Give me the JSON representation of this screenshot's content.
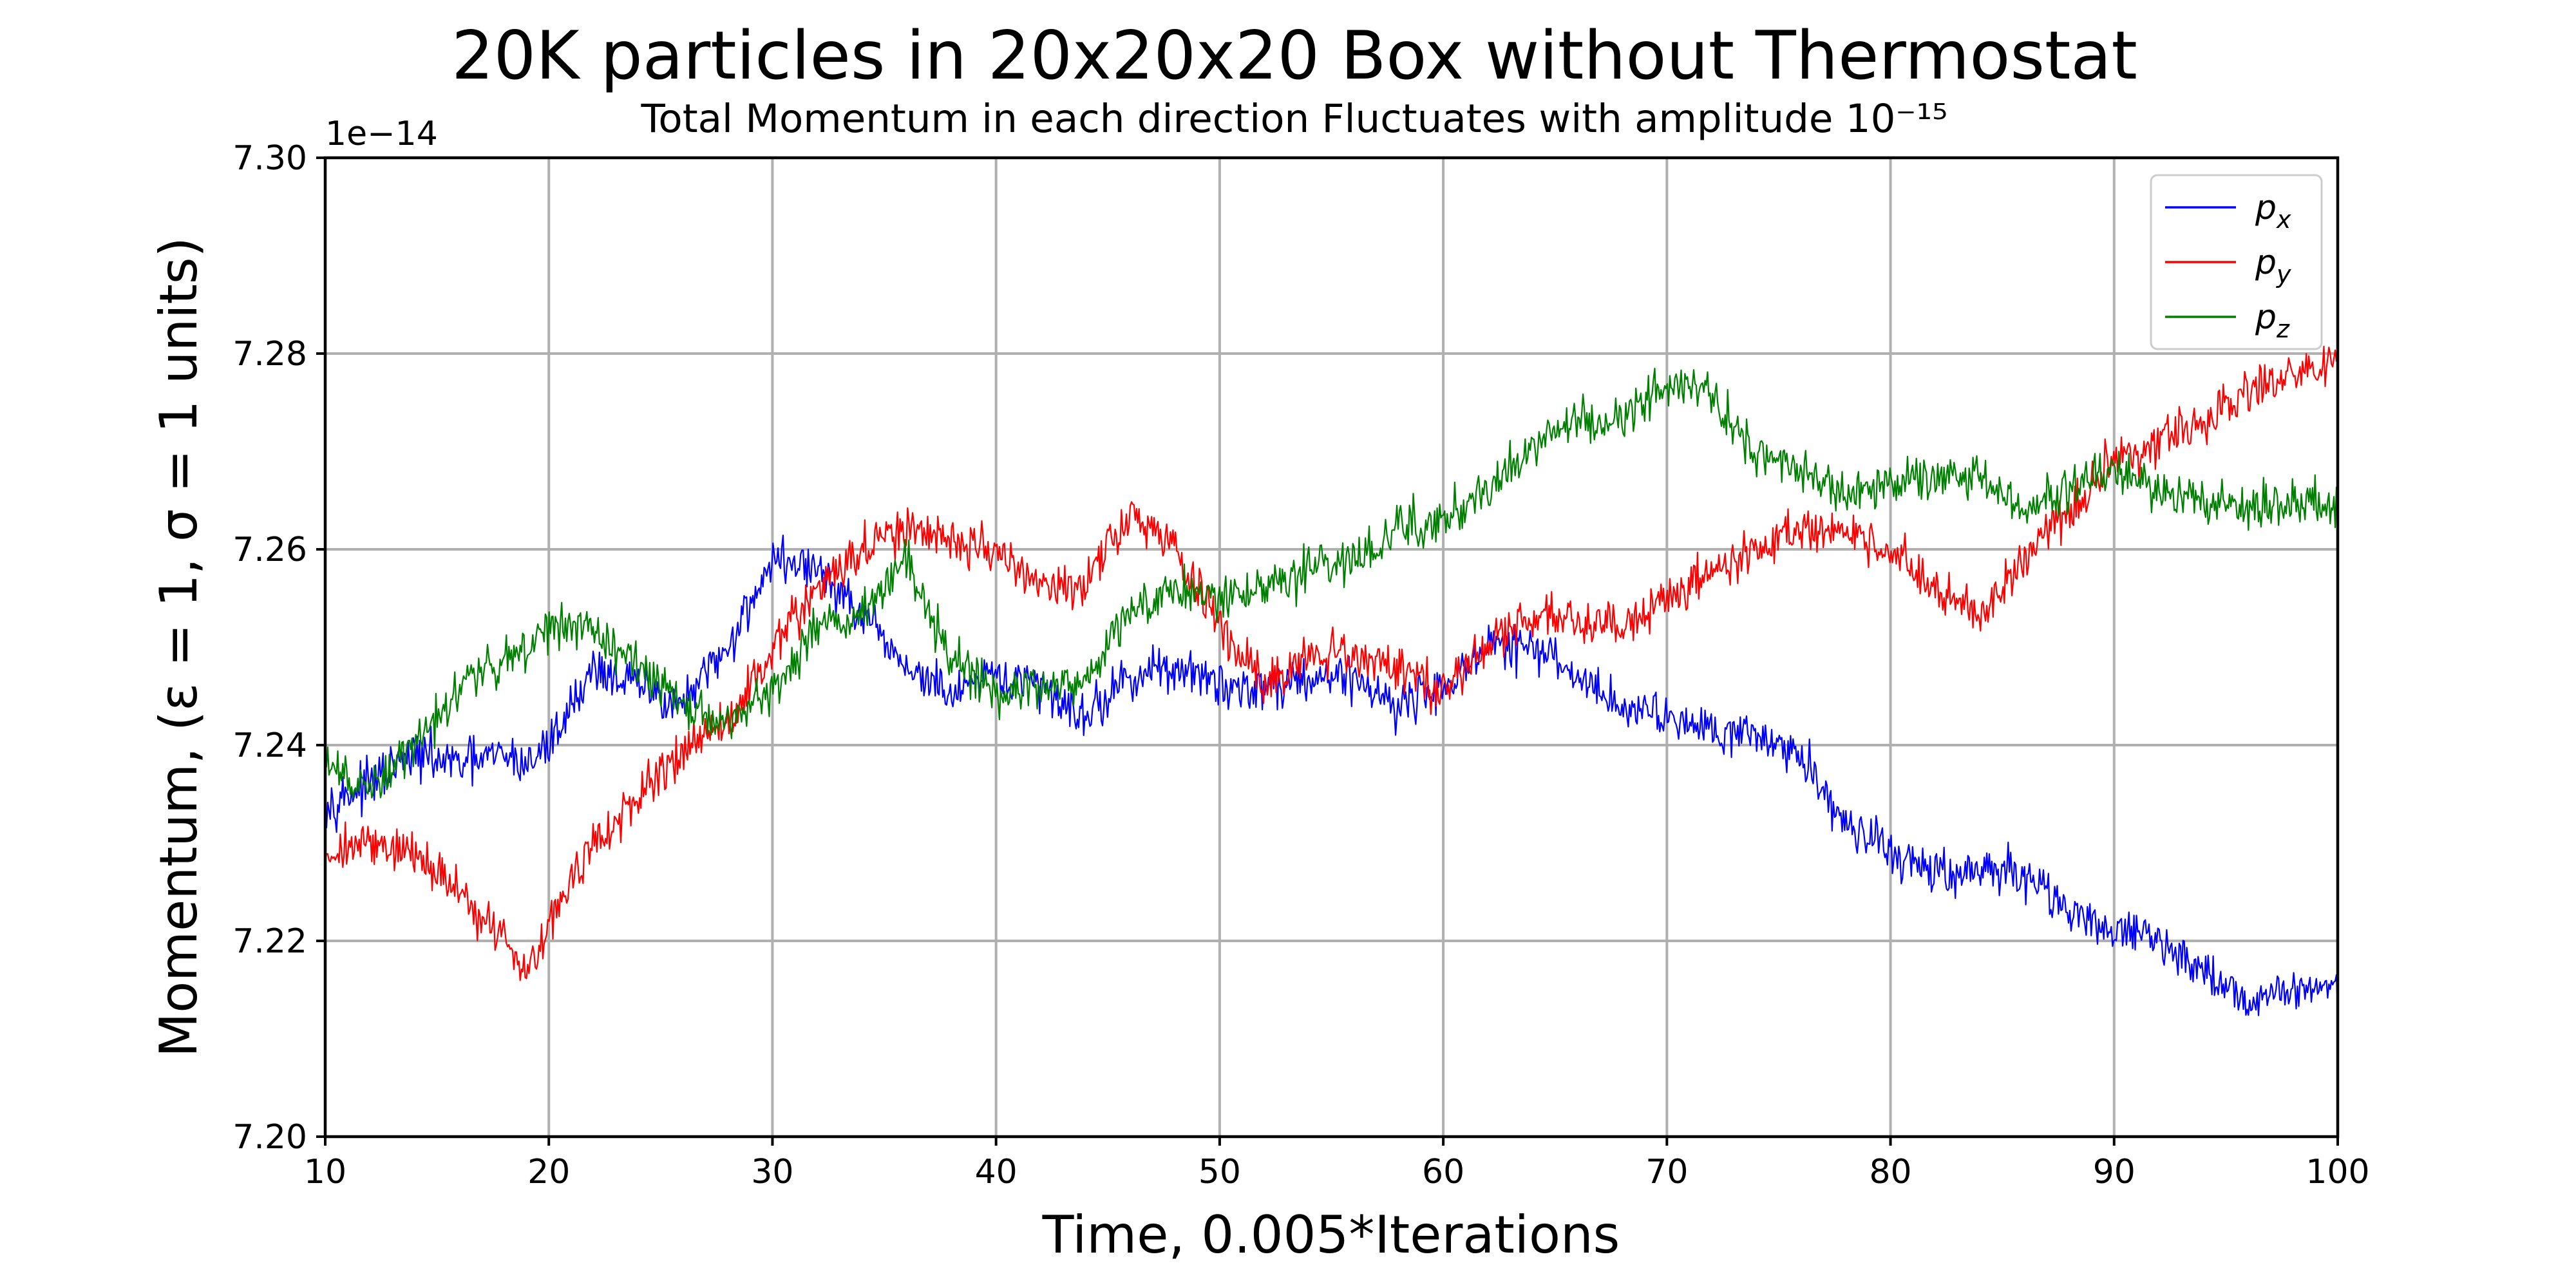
{
  "chart_data": {
    "type": "line",
    "title": "20K particles in 20x20x20 Box without Thermostat",
    "subtitle": "Total Momentum in each direction Fluctuates with amplitude 10⁻¹⁵",
    "xlabel": "Time, 0.005*Iterations",
    "ylabel": "Momentum, (ε = 1, σ = 1 units)",
    "offset_label": "1e−14",
    "xlim": [
      10,
      100
    ],
    "ylim": [
      7.2,
      7.3
    ],
    "x_ticks": [
      10,
      20,
      30,
      40,
      50,
      60,
      70,
      80,
      90,
      100
    ],
    "y_ticks": [
      "7.20",
      "7.22",
      "7.24",
      "7.26",
      "7.28",
      "7.30"
    ],
    "grid": true,
    "legend_position": "top-right",
    "x": [
      10,
      12,
      14,
      16,
      18,
      19,
      20,
      22,
      24,
      26,
      28,
      30,
      32,
      34,
      36,
      38,
      40,
      42,
      44,
      46,
      48,
      50,
      52,
      54,
      56,
      58,
      60,
      62,
      64,
      66,
      68,
      70,
      72,
      74,
      76,
      78,
      80,
      82,
      84,
      86,
      88,
      90,
      92,
      94,
      96,
      98,
      100
    ],
    "series": [
      {
        "name": "p_x",
        "legend_main": "p",
        "legend_sub": "x",
        "color": "#0000ff",
        "values": [
          7.234,
          7.236,
          7.239,
          7.238,
          7.239,
          7.238,
          7.24,
          7.248,
          7.246,
          7.244,
          7.25,
          7.259,
          7.258,
          7.253,
          7.248,
          7.245,
          7.247,
          7.246,
          7.243,
          7.247,
          7.248,
          7.246,
          7.246,
          7.247,
          7.247,
          7.244,
          7.246,
          7.25,
          7.25,
          7.247,
          7.244,
          7.243,
          7.242,
          7.241,
          7.239,
          7.232,
          7.229,
          7.227,
          7.227,
          7.227,
          7.223,
          7.221,
          7.22,
          7.217,
          7.214,
          7.215,
          7.216
        ]
      },
      {
        "name": "p_y",
        "legend_main": "p",
        "legend_sub": "y",
        "color": "#ff0000",
        "values": [
          7.229,
          7.23,
          7.229,
          7.225,
          7.22,
          7.217,
          7.222,
          7.23,
          7.234,
          7.24,
          7.242,
          7.25,
          7.256,
          7.26,
          7.262,
          7.261,
          7.26,
          7.256,
          7.256,
          7.264,
          7.26,
          7.252,
          7.246,
          7.249,
          7.249,
          7.248,
          7.246,
          7.25,
          7.253,
          7.253,
          7.252,
          7.255,
          7.258,
          7.26,
          7.262,
          7.262,
          7.26,
          7.256,
          7.253,
          7.259,
          7.264,
          7.269,
          7.271,
          7.273,
          7.276,
          7.278,
          7.279
        ]
      },
      {
        "name": "p_z",
        "legend_main": "p",
        "legend_sub": "z",
        "color": "#008000",
        "values": [
          7.238,
          7.235,
          7.24,
          7.246,
          7.249,
          7.25,
          7.252,
          7.252,
          7.248,
          7.244,
          7.242,
          7.246,
          7.252,
          7.254,
          7.259,
          7.249,
          7.245,
          7.246,
          7.247,
          7.254,
          7.256,
          7.255,
          7.256,
          7.258,
          7.259,
          7.262,
          7.263,
          7.266,
          7.271,
          7.273,
          7.273,
          7.277,
          7.276,
          7.27,
          7.268,
          7.265,
          7.267,
          7.267,
          7.267,
          7.264,
          7.266,
          7.268,
          7.266,
          7.265,
          7.264,
          7.265,
          7.264
        ]
      }
    ]
  }
}
